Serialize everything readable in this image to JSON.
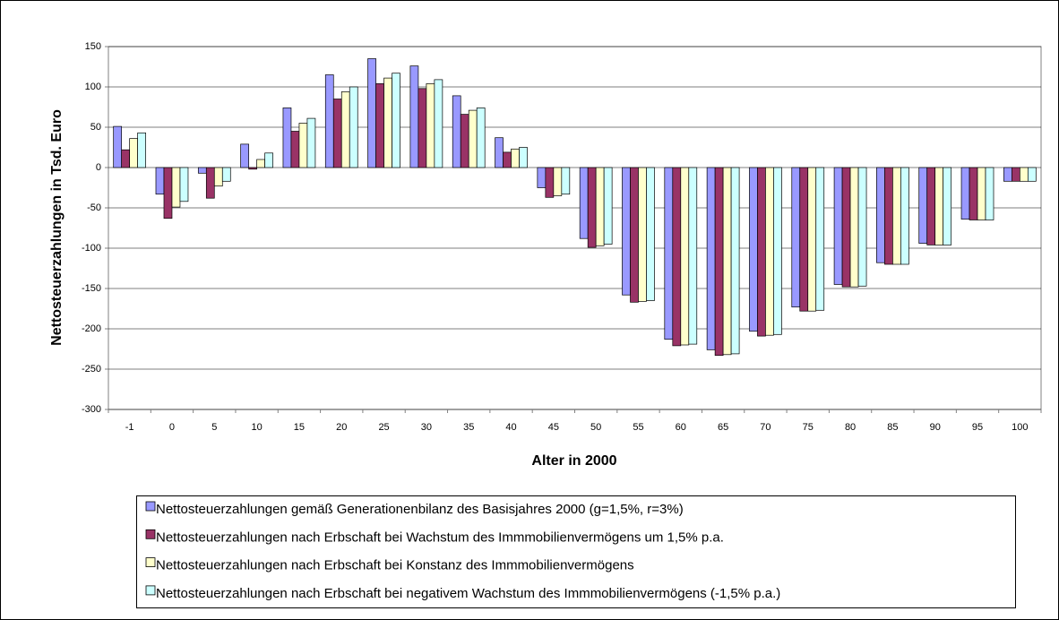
{
  "chart_data": {
    "type": "bar",
    "ylabel": "Nettosteuerzahlungen in Tsd. Euro",
    "xlabel": "Alter in 2000",
    "categories": [
      "-1",
      "0",
      "5",
      "10",
      "15",
      "20",
      "25",
      "30",
      "35",
      "40",
      "45",
      "50",
      "55",
      "60",
      "65",
      "70",
      "75",
      "80",
      "85",
      "90",
      "95",
      "100"
    ],
    "series": [
      {
        "name": "Nettosteuerzahlungen gemäß Generationenbilanz des Basisjahres 2000 (g=1,5%, r=3%)",
        "color": "#9999ff",
        "values": [
          51,
          -33,
          -7,
          29,
          74,
          115,
          135,
          126,
          89,
          37,
          -25,
          -88,
          -158,
          -213,
          -226,
          -203,
          -173,
          -145,
          -118,
          -94,
          -64,
          -17
        ]
      },
      {
        "name": "Nettosteuerzahlungen nach Erbschaft bei Wachstum des Immmobilienvermögens um 1,5% p.a.",
        "color": "#993366",
        "values": [
          22,
          -63,
          -38,
          -2,
          45,
          85,
          104,
          98,
          66,
          19,
          -37,
          -99,
          -167,
          -221,
          -233,
          -209,
          -178,
          -148,
          -120,
          -96,
          -65,
          -17
        ]
      },
      {
        "name": "Nettosteuerzahlungen nach Erbschaft bei Konstanz des Immmobilienvermögens",
        "color": "#ffffcc",
        "values": [
          36,
          -49,
          -23,
          10,
          55,
          94,
          111,
          104,
          71,
          23,
          -35,
          -97,
          -166,
          -220,
          -232,
          -208,
          -178,
          -148,
          -120,
          -96,
          -65,
          -17
        ]
      },
      {
        "name": "Nettosteuerzahlungen nach Erbschaft bei negativem Wachstum des Immmobilienvermögens (-1,5% p.a.)",
        "color": "#ccffff",
        "values": [
          43,
          -42,
          -17,
          18,
          61,
          100,
          117,
          109,
          74,
          25,
          -33,
          -95,
          -165,
          -219,
          -231,
          -207,
          -177,
          -147,
          -120,
          -96,
          -65,
          -17
        ]
      }
    ],
    "ylim": [
      -300,
      150
    ],
    "yticks": [
      -300,
      -250,
      -200,
      -150,
      -100,
      -50,
      0,
      50,
      100,
      150
    ],
    "grid": true
  }
}
